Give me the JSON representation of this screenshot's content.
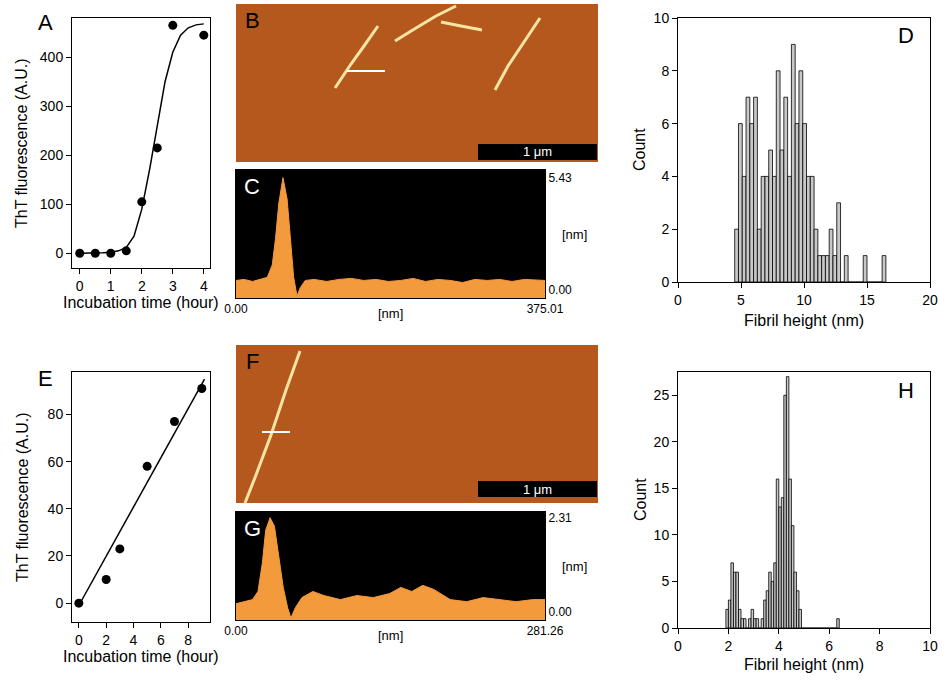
{
  "chart_data": [
    {
      "panel": "A",
      "type": "scatter",
      "x_label": "Incubation time (hour)",
      "y_label": "ThT fluorescence (A.U.)",
      "series": [
        {
          "type": "scatter",
          "marker": "circle",
          "color": "#000000",
          "x": [
            0,
            0.5,
            1,
            1.5,
            2,
            2.5,
            3,
            4
          ],
          "values": [
            0,
            0,
            0,
            5,
            105,
            215,
            465,
            445
          ]
        },
        {
          "type": "line",
          "line_style": "solid",
          "color": "#000000",
          "x": [
            0,
            0.25,
            0.5,
            0.75,
            1,
            1.25,
            1.5,
            1.75,
            2,
            2.25,
            2.5,
            2.75,
            3,
            3.25,
            3.5,
            3.75,
            4
          ],
          "values": [
            0,
            0,
            0,
            1,
            2,
            5,
            12,
            35,
            90,
            170,
            260,
            350,
            410,
            445,
            460,
            466,
            468
          ]
        }
      ],
      "xlim": [
        -0.25,
        4.2
      ],
      "xticks": [
        0,
        1,
        2,
        3,
        4
      ],
      "ylim": [
        -30,
        480
      ],
      "yticks": [
        0,
        100,
        200,
        300,
        400
      ],
      "grid": false
    },
    {
      "panel": "B",
      "type": "image",
      "scale_bar": "1 μm"
    },
    {
      "panel": "C",
      "type": "area",
      "x_label": "[nm]",
      "y_label": "[nm]",
      "color": "#f39a3c",
      "x": [
        0,
        10,
        20,
        30,
        38,
        44,
        48,
        52,
        57,
        62,
        66,
        70,
        74,
        78,
        84,
        95,
        110,
        125,
        140,
        155,
        170,
        185,
        200,
        215,
        230,
        245,
        260,
        275,
        290,
        305,
        320,
        335,
        350,
        365,
        375.01
      ],
      "values": [
        0.45,
        0.5,
        0.4,
        0.5,
        0.6,
        1.2,
        2.5,
        4.2,
        5.43,
        4.4,
        2.3,
        0.6,
        -0.3,
        0.1,
        0.45,
        0.5,
        0.4,
        0.5,
        0.55,
        0.45,
        0.5,
        0.4,
        0.45,
        0.55,
        0.4,
        0.5,
        0.45,
        0.35,
        0.5,
        0.45,
        0.5,
        0.4,
        0.5,
        0.45,
        0.45
      ],
      "xlim": [
        0,
        375.01
      ],
      "xticks": [
        {
          "value": 0,
          "label": "0.00"
        },
        {
          "value": 375.01,
          "label": "375.01"
        }
      ],
      "ylim": [
        -0.4,
        5.8
      ],
      "yticks": [
        {
          "value": 0,
          "label": "0.00"
        },
        {
          "value": 5.43,
          "label": "5.43"
        }
      ],
      "grid": false
    },
    {
      "panel": "D",
      "type": "histogram",
      "x_label": "Fibril height (nm)",
      "y_label": "Count",
      "color": "#c8c8c8",
      "bins": [
        4.5,
        4.8,
        5.1,
        5.4,
        5.7,
        6.0,
        6.3,
        6.6,
        6.9,
        7.2,
        7.5,
        7.8,
        8.1,
        8.4,
        8.7,
        9.0,
        9.3,
        9.6,
        9.9,
        10.2,
        10.5,
        10.8,
        11.1,
        11.4,
        11.7,
        12.0,
        12.3,
        12.6,
        12.9,
        13.2,
        13.5,
        13.8,
        14.1,
        14.4,
        14.7,
        15.0,
        15.3,
        15.6,
        15.9,
        16.2,
        16.5
      ],
      "values": [
        2,
        6,
        4,
        7,
        6,
        7,
        2,
        4,
        4,
        5,
        4,
        8,
        5,
        7,
        4,
        9,
        6,
        8,
        6,
        4,
        4,
        2,
        1,
        1,
        1,
        2,
        1,
        3,
        0,
        1,
        0,
        0,
        0,
        0,
        1,
        0,
        0,
        0,
        0,
        1
      ],
      "xlim": [
        0,
        20
      ],
      "xticks": [
        0,
        5,
        10,
        15,
        20
      ],
      "ylim": [
        0,
        10
      ],
      "yticks": [
        0,
        2,
        4,
        6,
        8,
        10
      ],
      "grid": false
    },
    {
      "panel": "E",
      "type": "scatter",
      "x_label": "Incubation time (hour)",
      "y_label": "ThT fluorescence (A.U.)",
      "series": [
        {
          "type": "scatter",
          "marker": "circle",
          "color": "#000000",
          "x": [
            0,
            2,
            3,
            5,
            7,
            9
          ],
          "values": [
            0,
            10,
            23,
            58,
            77,
            91
          ]
        },
        {
          "type": "line",
          "line_style": "solid",
          "color": "#000000",
          "x": [
            0,
            9.2
          ],
          "values": [
            -1,
            95
          ]
        }
      ],
      "xlim": [
        -0.5,
        9.6
      ],
      "xticks": [
        0,
        2,
        4,
        6,
        8
      ],
      "ylim": [
        -8,
        98
      ],
      "yticks": [
        0,
        20,
        40,
        60,
        80
      ],
      "grid": false
    },
    {
      "panel": "F",
      "type": "image",
      "scale_bar": "1 μm"
    },
    {
      "panel": "G",
      "type": "area",
      "x_label": "[nm]",
      "y_label": "[nm]",
      "color": "#f39a3c",
      "x": [
        0,
        8,
        15,
        20,
        24,
        27,
        31,
        35,
        39,
        43,
        47,
        50,
        54,
        60,
        70,
        80,
        95,
        110,
        125,
        140,
        150,
        160,
        170,
        180,
        195,
        210,
        225,
        240,
        255,
        270,
        281.26
      ],
      "values": [
        0.2,
        0.25,
        0.3,
        0.5,
        1.2,
        2.0,
        2.31,
        2.1,
        1.3,
        0.6,
        0.1,
        -0.15,
        0.1,
        0.35,
        0.5,
        0.4,
        0.3,
        0.4,
        0.35,
        0.45,
        0.6,
        0.5,
        0.65,
        0.55,
        0.3,
        0.25,
        0.35,
        0.3,
        0.25,
        0.3,
        0.3
      ],
      "xlim": [
        0,
        281.26
      ],
      "xticks": [
        {
          "value": 0,
          "label": "0.00"
        },
        {
          "value": 281.26,
          "label": "281.26"
        }
      ],
      "ylim": [
        -0.2,
        2.45
      ],
      "yticks": [
        {
          "value": 0,
          "label": "0.00"
        },
        {
          "value": 2.31,
          "label": "2.31"
        }
      ],
      "grid": false
    },
    {
      "panel": "H",
      "type": "histogram",
      "x_label": "Fibril height (nm)",
      "y_label": "Count",
      "color": "#c8c8c8",
      "bins": [
        1.9,
        2.0,
        2.1,
        2.2,
        2.3,
        2.4,
        2.5,
        2.6,
        2.7,
        2.8,
        2.9,
        3.0,
        3.1,
        3.2,
        3.3,
        3.4,
        3.5,
        3.6,
        3.7,
        3.8,
        3.9,
        4.0,
        4.1,
        4.2,
        4.3,
        4.4,
        4.5,
        4.6,
        4.7,
        4.8,
        4.9,
        5.0,
        5.1,
        5.2,
        5.3,
        5.4,
        5.5,
        5.6,
        5.7,
        5.8,
        5.9,
        6.0,
        6.1,
        6.2,
        6.3,
        6.4
      ],
      "values": [
        2,
        3,
        7,
        6,
        6,
        2,
        1,
        1,
        0,
        1,
        2,
        1,
        1,
        0,
        1,
        3,
        4,
        6,
        5,
        7,
        16,
        13,
        14,
        25,
        27,
        16,
        11,
        6,
        4,
        2,
        0,
        0,
        0,
        0,
        0,
        0,
        0,
        0,
        0,
        0,
        0,
        0,
        0,
        0,
        1
      ],
      "xlim": [
        0,
        10
      ],
      "xticks": [
        0,
        2,
        4,
        6,
        8,
        10
      ],
      "ylim": [
        0,
        27.5
      ],
      "yticks": [
        0,
        5,
        10,
        15,
        20,
        25
      ],
      "grid": false
    }
  ]
}
